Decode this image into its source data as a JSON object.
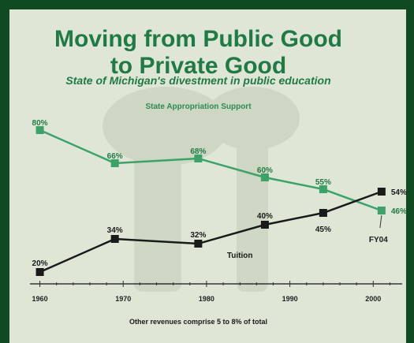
{
  "title_line1": "Moving from Public Good",
  "title_line2": "to Private Good",
  "subtitle": "State of Michigan's divestment in public education",
  "footnote": "Other revenues comprise 5 to 8% of total",
  "colors": {
    "background": "#0f4a22",
    "panel": "#dfe6d6",
    "title": "#1f7a45",
    "state": "#3aa36a",
    "tuition": "#1a1a1a"
  },
  "chart_data": {
    "type": "line",
    "xlabel": "",
    "ylabel": "",
    "x_ticks": [
      1960,
      1970,
      1980,
      1990,
      2000
    ],
    "xlim": [
      1959,
      2003
    ],
    "ylim": [
      15,
      85
    ],
    "annotations": [
      {
        "text": "FY04",
        "x": 2001,
        "y": 46
      }
    ],
    "series": [
      {
        "name": "State Appropriation Support",
        "x": [
          1960,
          1969,
          1979,
          1987,
          1994,
          2001
        ],
        "values": [
          80,
          66,
          68,
          60,
          55,
          46
        ],
        "labels": [
          "80%",
          "66%",
          "68%",
          "60%",
          "55%",
          "46%"
        ]
      },
      {
        "name": "Tuition",
        "x": [
          1960,
          1969,
          1979,
          1987,
          1994,
          2001
        ],
        "values": [
          20,
          34,
          32,
          40,
          45,
          54
        ],
        "labels": [
          "20%",
          "34%",
          "32%",
          "40%",
          "45%",
          "54%"
        ]
      }
    ]
  }
}
